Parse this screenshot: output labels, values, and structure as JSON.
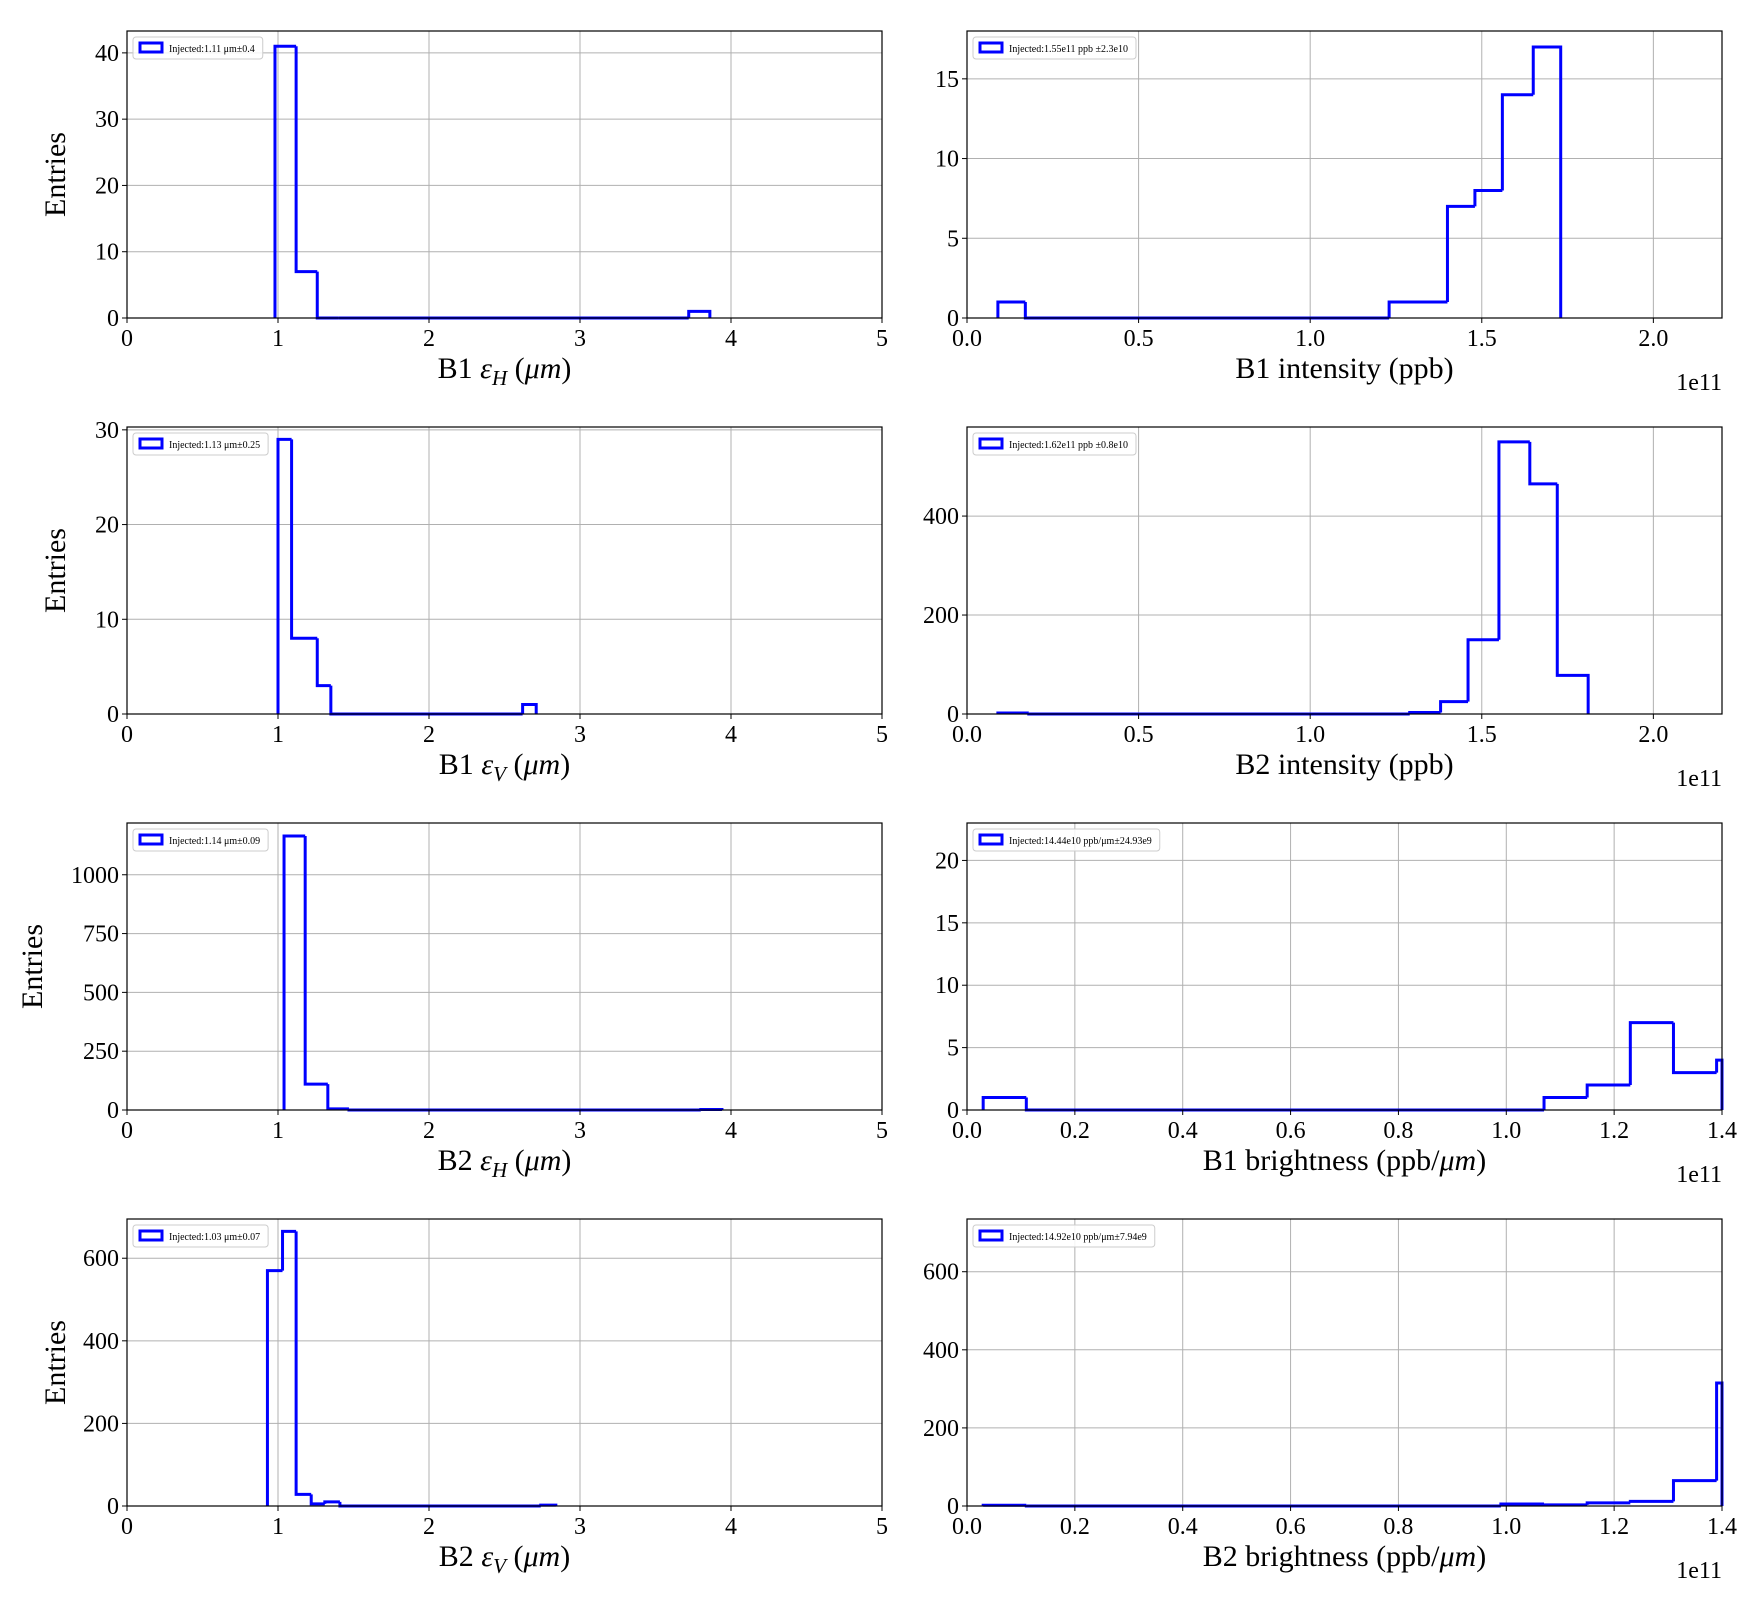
{
  "figure": {
    "background": "#ffffff",
    "line_color": "#0000ff",
    "grid_color": "#b0b0b0"
  },
  "chart_data": [
    {
      "id": "b1-eh",
      "type": "histogram",
      "xlabel": "B1 ε_H (μm)",
      "xlabel_parts": [
        "B1 ",
        "ε",
        "H",
        " (",
        "μm",
        ")"
      ],
      "ylabel": "Entries",
      "legend": "Injected:1.11 μm±0.4",
      "legend_location": "upper left",
      "xlim": [
        0,
        5
      ],
      "ylim": [
        0,
        43.3
      ],
      "xticks": [
        0,
        1,
        2,
        3,
        4,
        5
      ],
      "xtick_labels": [
        "0",
        "1",
        "2",
        "3",
        "4",
        "5"
      ],
      "yticks": [
        0,
        10,
        20,
        30,
        40
      ],
      "ytick_labels": [
        "0",
        "10",
        "20",
        "30",
        "40"
      ],
      "offset_text": "",
      "bin_edges": [
        0.98,
        1.12,
        1.26,
        1.4,
        3.72,
        3.86
      ],
      "counts": [
        41,
        7,
        0,
        0,
        1
      ],
      "grid": true
    },
    {
      "id": "b1-int",
      "type": "histogram",
      "xlabel": "B1 intensity (ppb)",
      "xlabel_parts": [
        "B1 intensity (ppb)",
        "",
        "",
        "",
        "",
        ""
      ],
      "ylabel": "",
      "legend": "Injected:1.55e11 ppb ±2.3e10",
      "legend_location": "upper left",
      "xlim": [
        0,
        2.2
      ],
      "ylim": [
        0,
        18
      ],
      "xticks": [
        0,
        0.5,
        1.0,
        1.5,
        2.0
      ],
      "xtick_labels": [
        "0.0",
        "0.5",
        "1.0",
        "1.5",
        "2.0"
      ],
      "yticks": [
        0,
        5,
        10,
        15
      ],
      "ytick_labels": [
        "0",
        "5",
        "10",
        "15"
      ],
      "offset_text": "1e11",
      "bin_edges": [
        0.09,
        0.17,
        1.23,
        1.4,
        1.48,
        1.56,
        1.65,
        1.73
      ],
      "counts": [
        1,
        0,
        1,
        7,
        8,
        14,
        17
      ],
      "grid": true
    },
    {
      "id": "b1-ev",
      "type": "histogram",
      "xlabel": "B1 ε_V (μm)",
      "xlabel_parts": [
        "B1 ",
        "ε",
        "V",
        " (",
        "μm",
        ")"
      ],
      "ylabel": "Entries",
      "legend": "Injected:1.13 μm±0.25",
      "legend_location": "upper left",
      "xlim": [
        0,
        5
      ],
      "ylim": [
        0,
        30.3
      ],
      "xticks": [
        0,
        1,
        2,
        3,
        4,
        5
      ],
      "xtick_labels": [
        "0",
        "1",
        "2",
        "3",
        "4",
        "5"
      ],
      "yticks": [
        0,
        10,
        20,
        30
      ],
      "ytick_labels": [
        "0",
        "10",
        "20",
        "30"
      ],
      "offset_text": "",
      "bin_edges": [
        1.0,
        1.09,
        1.26,
        1.35,
        2.62,
        2.71
      ],
      "counts": [
        29,
        8,
        3,
        0,
        1
      ],
      "grid": true
    },
    {
      "id": "b2-int",
      "type": "histogram",
      "xlabel": "B2 intensity (ppb)",
      "xlabel_parts": [
        "B2 intensity (ppb)",
        "",
        "",
        "",
        "",
        ""
      ],
      "ylabel": "",
      "legend": "Injected:1.62e11 ppb ±0.8e10",
      "legend_location": "upper left",
      "xlim": [
        0,
        2.2
      ],
      "ylim": [
        0,
        580
      ],
      "xticks": [
        0,
        0.5,
        1.0,
        1.5,
        2.0
      ],
      "xtick_labels": [
        "0.0",
        "0.5",
        "1.0",
        "1.5",
        "2.0"
      ],
      "yticks": [
        0,
        200,
        400
      ],
      "ytick_labels": [
        "0",
        "200",
        "400"
      ],
      "offset_text": "1e11",
      "bin_edges": [
        0.09,
        0.18,
        1.29,
        1.38,
        1.46,
        1.55,
        1.64,
        1.72,
        1.81
      ],
      "counts": [
        2,
        0,
        3,
        25,
        150,
        550,
        465,
        78
      ],
      "grid": true
    },
    {
      "id": "b2-eh",
      "type": "histogram",
      "xlabel": "B2 ε_H (μm)",
      "xlabel_parts": [
        "B2 ",
        "ε",
        "H",
        " (",
        "μm",
        ")"
      ],
      "ylabel": "Entries",
      "legend": "Injected:1.14 μm±0.09",
      "legend_location": "upper left",
      "xlim": [
        0,
        5
      ],
      "ylim": [
        0,
        1220
      ],
      "xticks": [
        0,
        1,
        2,
        3,
        4,
        5
      ],
      "xtick_labels": [
        "0",
        "1",
        "2",
        "3",
        "4",
        "5"
      ],
      "yticks": [
        0,
        250,
        500,
        750,
        1000
      ],
      "ytick_labels": [
        "0",
        "250",
        "500",
        "750",
        "1000"
      ],
      "offset_text": "",
      "bin_edges": [
        1.04,
        1.18,
        1.33,
        1.47,
        3.8,
        3.94
      ],
      "counts": [
        1165,
        110,
        5,
        0,
        2
      ],
      "grid": true
    },
    {
      "id": "b1-bright",
      "type": "histogram",
      "xlabel": "B1 brightness (ppb/μm)",
      "xlabel_parts": [
        "B1 brightness (ppb/",
        "μm",
        ")",
        "",
        "",
        ""
      ],
      "ylabel": "",
      "legend": "Injected:14.44e10 ppb/μm±24.93e9",
      "legend_location": "upper left",
      "xlim": [
        0,
        1.4
      ],
      "ylim": [
        0,
        23
      ],
      "xticks": [
        0,
        0.2,
        0.4,
        0.6,
        0.8,
        1.0,
        1.2,
        1.4
      ],
      "xtick_labels": [
        "0.0",
        "0.2",
        "0.4",
        "0.6",
        "0.8",
        "1.0",
        "1.2",
        "1.4"
      ],
      "yticks": [
        0,
        5,
        10,
        15,
        20
      ],
      "ytick_labels": [
        "0",
        "5",
        "10",
        "15",
        "20"
      ],
      "offset_text": "1e11",
      "bin_edges": [
        0.03,
        0.11,
        1.07,
        1.15,
        1.23,
        1.31,
        1.39,
        1.4
      ],
      "counts": [
        1,
        0,
        1,
        2,
        7,
        3,
        4
      ],
      "grid": true
    },
    {
      "id": "b2-ev",
      "type": "histogram",
      "xlabel": "B2 ε_V (μm)",
      "xlabel_parts": [
        "B2 ",
        "ε",
        "V",
        " (",
        "μm",
        ")"
      ],
      "ylabel": "Entries",
      "legend": "Injected:1.03 μm±0.07",
      "legend_location": "upper left",
      "xlim": [
        0,
        5
      ],
      "ylim": [
        0,
        695
      ],
      "xticks": [
        0,
        1,
        2,
        3,
        4,
        5
      ],
      "xtick_labels": [
        "0",
        "1",
        "2",
        "3",
        "4",
        "5"
      ],
      "yticks": [
        0,
        200,
        400,
        600
      ],
      "ytick_labels": [
        "0",
        "200",
        "400",
        "600"
      ],
      "offset_text": "",
      "bin_edges": [
        0.93,
        1.03,
        1.12,
        1.22,
        1.31,
        1.41,
        2.74,
        2.84
      ],
      "counts": [
        570,
        665,
        28,
        5,
        10,
        0,
        2
      ],
      "grid": true
    },
    {
      "id": "b2-bright",
      "type": "histogram",
      "xlabel": "B2 brightness (ppb/μm)",
      "xlabel_parts": [
        "B2 brightness (ppb/",
        "μm",
        ")",
        "",
        "",
        ""
      ],
      "ylabel": "",
      "legend": "Injected:14.92e10 ppb/μm±7.94e9",
      "legend_location": "upper left",
      "xlim": [
        0,
        1.4
      ],
      "ylim": [
        0,
        735
      ],
      "xticks": [
        0,
        0.2,
        0.4,
        0.6,
        0.8,
        1.0,
        1.2,
        1.4
      ],
      "xtick_labels": [
        "0.0",
        "0.2",
        "0.4",
        "0.6",
        "0.8",
        "1.0",
        "1.2",
        "1.4"
      ],
      "yticks": [
        0,
        200,
        400,
        600
      ],
      "ytick_labels": [
        "0",
        "200",
        "400",
        "600"
      ],
      "offset_text": "1e11",
      "bin_edges": [
        0.03,
        0.11,
        0.99,
        1.07,
        1.15,
        1.23,
        1.31,
        1.39,
        1.4
      ],
      "counts": [
        2,
        0,
        5,
        3,
        8,
        12,
        65,
        315
      ],
      "grid": true
    }
  ]
}
